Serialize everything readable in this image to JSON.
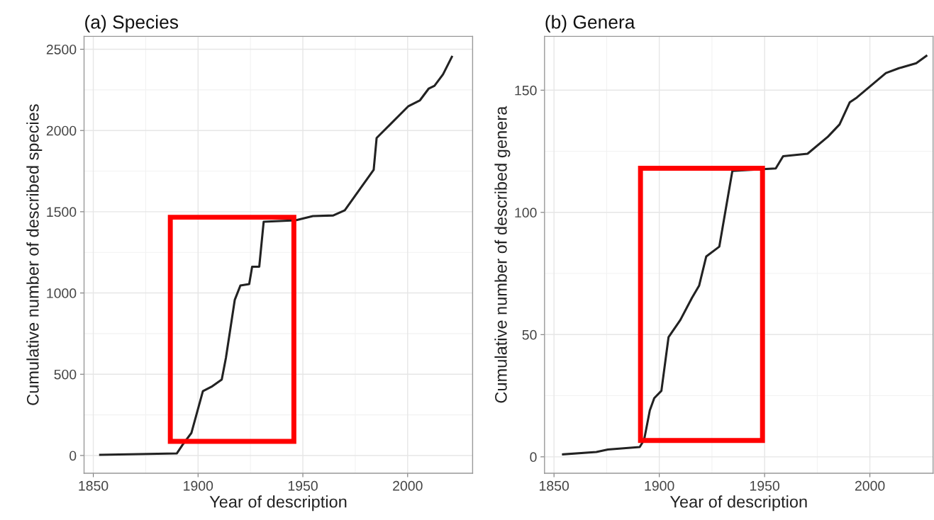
{
  "chart_data": [
    {
      "type": "line",
      "title": "(a) Species",
      "xlabel": "Year of description",
      "ylabel": "Cumulative number of described species",
      "xlim": [
        1845.6,
        2031
      ],
      "ylim": [
        -109,
        2579
      ],
      "xticks": [
        1850,
        1900,
        1950,
        2000
      ],
      "yticks": [
        0,
        500,
        1000,
        1500,
        2000,
        2500
      ],
      "grid": true,
      "legend": false,
      "series": [
        {
          "color": "#222222",
          "x": [
            1853.3,
            1889.9,
            1892.6,
            1896.8,
            1902.3,
            1906.4,
            1911.3,
            1913.3,
            1917.5,
            1920.2,
            1924.4,
            1925.8,
            1929.2,
            1931.3,
            1946.5,
            1954.8,
            1964.5,
            1970,
            1983.8,
            1985.2,
            1992.1,
            2000.4,
            2005.9,
            2010,
            2012.8,
            2016.9,
            2021.1
          ],
          "values": [
            4,
            13,
            66,
            138,
            396,
            423,
            467,
            601,
            957,
            1046,
            1055,
            1162,
            1162,
            1438,
            1447,
            1473,
            1477,
            1509,
            1758,
            1954,
            2043,
            2150,
            2186,
            2257,
            2275,
            2346,
            2453
          ]
        }
      ]
    },
    {
      "type": "line",
      "title": "(b) Genera",
      "xlabel": "Year of description",
      "ylabel": "Cumulative number of described genera",
      "xlim": [
        1845.5,
        2030
      ],
      "ylim": [
        -6.7,
        172
      ],
      "xticks": [
        1850,
        1900,
        1950,
        2000
      ],
      "yticks": [
        0,
        50,
        100,
        150
      ],
      "grid": true,
      "legend": false,
      "series": [
        {
          "color": "#222222",
          "x": [
            1854.3,
            1870.1,
            1875.6,
            1890.7,
            1892.8,
            1895.5,
            1897.6,
            1901,
            1904.4,
            1910,
            1915.5,
            1918.9,
            1922.3,
            1928.5,
            1934.7,
            1955.3,
            1958.8,
            1970.4,
            1980.1,
            1985.6,
            1990.4,
            1993.8,
            2000.7,
            2007.6,
            2013.8,
            2022,
            2026.8
          ],
          "values": [
            1,
            2,
            3,
            4,
            7,
            19,
            24,
            27,
            49,
            56,
            65,
            70,
            82,
            86,
            117,
            118,
            123,
            124,
            131,
            136,
            145,
            147,
            152,
            157,
            159,
            161,
            164
          ]
        }
      ]
    }
  ]
}
